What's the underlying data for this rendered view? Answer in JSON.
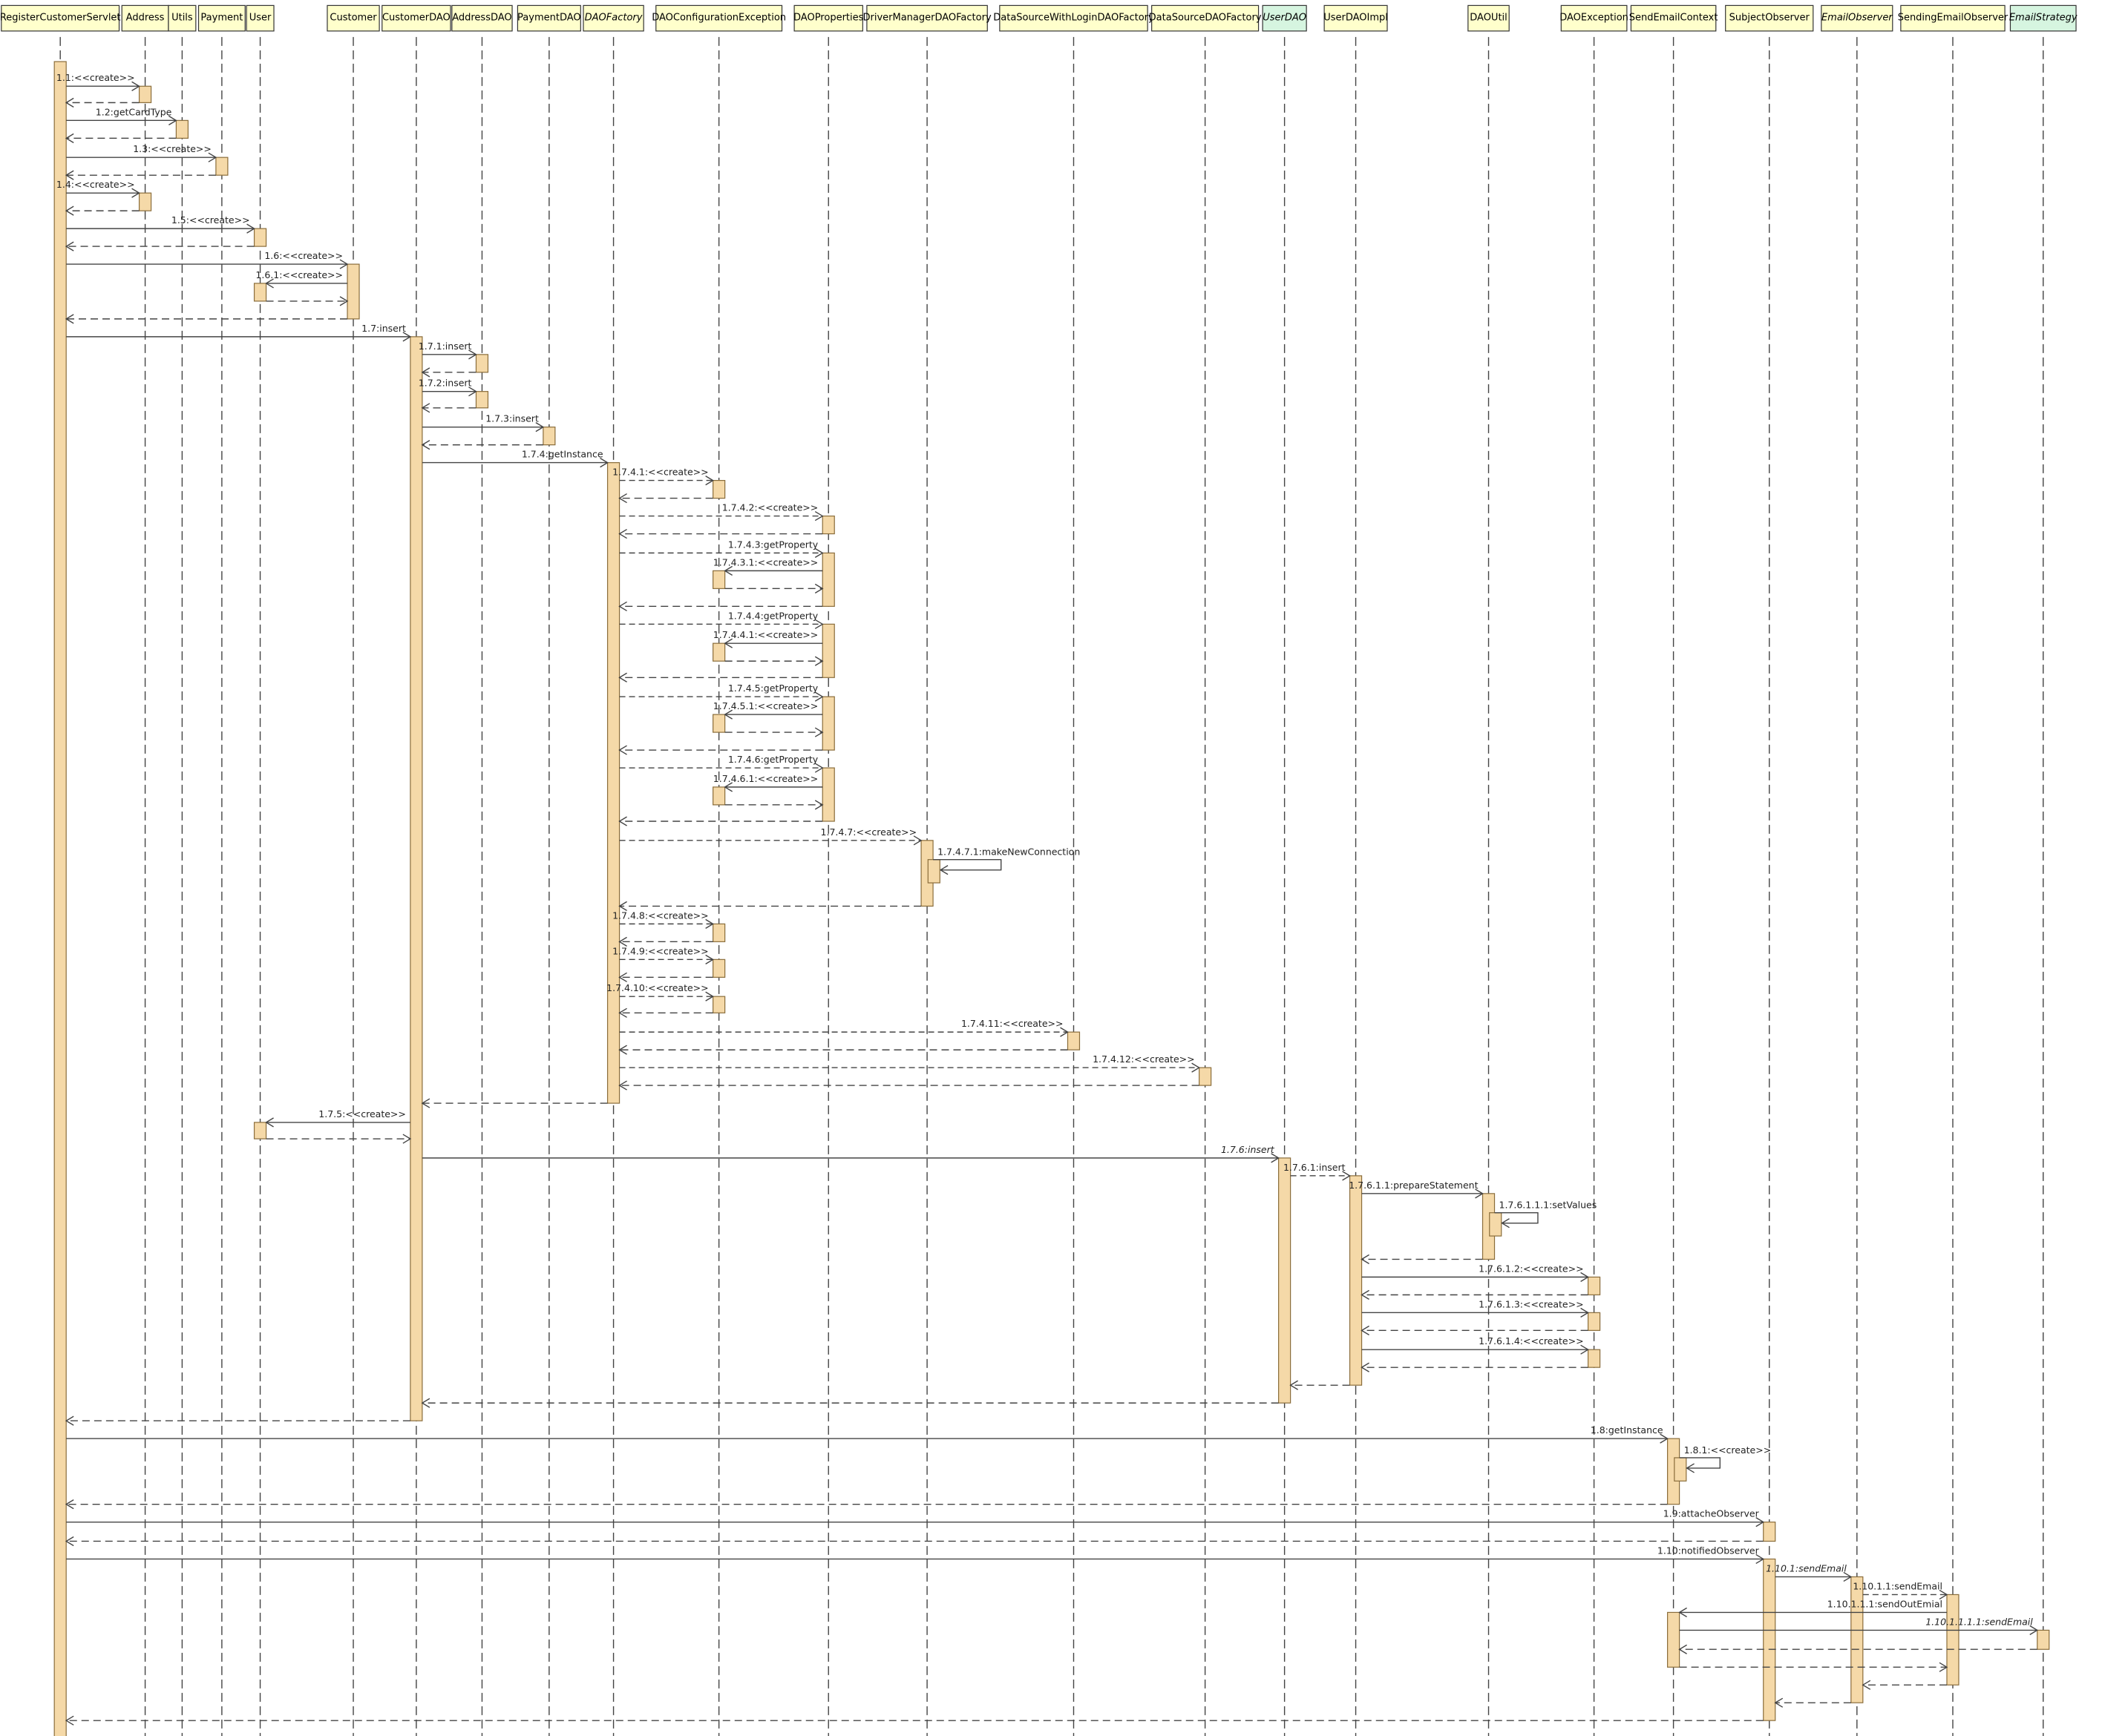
{
  "participants": [
    {
      "id": "RCS",
      "name": "RegisterCustomerServlet",
      "italic": false,
      "style": "class"
    },
    {
      "id": "ADDR",
      "name": "Address",
      "italic": false,
      "style": "class"
    },
    {
      "id": "UTILS",
      "name": "Utils",
      "italic": false,
      "style": "class"
    },
    {
      "id": "PAY",
      "name": "Payment",
      "italic": false,
      "style": "class"
    },
    {
      "id": "USER",
      "name": "User",
      "italic": false,
      "style": "class"
    },
    {
      "id": "CUST",
      "name": "Customer",
      "italic": false,
      "style": "class"
    },
    {
      "id": "CDAO",
      "name": "CustomerDAO",
      "italic": false,
      "style": "class"
    },
    {
      "id": "ADAO",
      "name": "AddressDAO",
      "italic": false,
      "style": "class"
    },
    {
      "id": "PDAO",
      "name": "PaymentDAO",
      "italic": false,
      "style": "class"
    },
    {
      "id": "DAOF",
      "name": "DAOFactory",
      "italic": true,
      "style": "class"
    },
    {
      "id": "DCE",
      "name": "DAOConfigurationException",
      "italic": false,
      "style": "class"
    },
    {
      "id": "DPROP",
      "name": "DAOProperties",
      "italic": false,
      "style": "class"
    },
    {
      "id": "DMDF",
      "name": "DriverManagerDAOFactory",
      "italic": false,
      "style": "class"
    },
    {
      "id": "DSWL",
      "name": "DataSourceWithLoginDAOFactory",
      "italic": false,
      "style": "class"
    },
    {
      "id": "DSDF",
      "name": "DataSourceDAOFactory",
      "italic": false,
      "style": "class"
    },
    {
      "id": "UDAO",
      "name": "UserDAO",
      "italic": true,
      "style": "interface"
    },
    {
      "id": "UDAOI",
      "name": "UserDAOImpl",
      "italic": false,
      "style": "class"
    },
    {
      "id": "DUTIL",
      "name": "DAOUtil",
      "italic": false,
      "style": "class"
    },
    {
      "id": "DEXC",
      "name": "DAOException",
      "italic": false,
      "style": "class"
    },
    {
      "id": "SEC",
      "name": "SendEmailContext",
      "italic": false,
      "style": "class"
    },
    {
      "id": "SOBS",
      "name": "SubjectObserver",
      "italic": false,
      "style": "class"
    },
    {
      "id": "EOBS",
      "name": "EmailObserver",
      "italic": true,
      "style": "class"
    },
    {
      "id": "SEOBS",
      "name": "SendingEmailObserver",
      "italic": false,
      "style": "class"
    },
    {
      "id": "ESTR",
      "name": "EmailStrategy",
      "italic": true,
      "style": "interface"
    }
  ],
  "messages": [
    {
      "label": "1.1:<<create>>",
      "from": "RCS",
      "to": "ADDR"
    },
    {
      "label": "1.2:getCardType",
      "from": "RCS",
      "to": "UTILS"
    },
    {
      "label": "1.3:<<create>>",
      "from": "RCS",
      "to": "PAY"
    },
    {
      "label": "1.4:<<create>>",
      "from": "RCS",
      "to": "ADDR"
    },
    {
      "label": "1.5:<<create>>",
      "from": "RCS",
      "to": "USER"
    },
    {
      "label": "1.6:<<create>>",
      "from": "RCS",
      "to": "CUST"
    },
    {
      "label": "1.6.1:<<create>>",
      "from": "CUST",
      "to": "USER"
    },
    {
      "label": "1.7:insert",
      "from": "RCS",
      "to": "CDAO"
    },
    {
      "label": "1.7.1:insert",
      "from": "CDAO",
      "to": "ADAO"
    },
    {
      "label": "1.7.2:insert",
      "from": "CDAO",
      "to": "ADAO"
    },
    {
      "label": "1.7.3:insert",
      "from": "CDAO",
      "to": "PDAO"
    },
    {
      "label": "1.7.4:getInstance",
      "from": "CDAO",
      "to": "DAOF"
    },
    {
      "label": "1.7.4.1:<<create>>",
      "from": "DAOF",
      "to": "DCE"
    },
    {
      "label": "1.7.4.2:<<create>>",
      "from": "DAOF",
      "to": "DPROP"
    },
    {
      "label": "1.7.4.3:getProperty",
      "from": "DAOF",
      "to": "DPROP"
    },
    {
      "label": "1.7.4.3.1:<<create>>",
      "from": "DPROP",
      "to": "DCE"
    },
    {
      "label": "1.7.4.4:getProperty",
      "from": "DAOF",
      "to": "DPROP"
    },
    {
      "label": "1.7.4.4.1:<<create>>",
      "from": "DPROP",
      "to": "DCE"
    },
    {
      "label": "1.7.4.5:getProperty",
      "from": "DAOF",
      "to": "DPROP"
    },
    {
      "label": "1.7.4.5.1:<<create>>",
      "from": "DPROP",
      "to": "DCE"
    },
    {
      "label": "1.7.4.6:getProperty",
      "from": "DAOF",
      "to": "DPROP"
    },
    {
      "label": "1.7.4.6.1:<<create>>",
      "from": "DPROP",
      "to": "DCE"
    },
    {
      "label": "1.7.4.7:<<create>>",
      "from": "DAOF",
      "to": "DMDF"
    },
    {
      "label": "1.7.4.7.1:makeNewConnection",
      "from": "DMDF",
      "to": "DMDF"
    },
    {
      "label": "1.7.4.8:<<create>>",
      "from": "DAOF",
      "to": "DCE"
    },
    {
      "label": "1.7.4.9:<<create>>",
      "from": "DAOF",
      "to": "DCE"
    },
    {
      "label": "1.7.4.10:<<create>>",
      "from": "DAOF",
      "to": "DCE"
    },
    {
      "label": "1.7.4.11:<<create>>",
      "from": "DAOF",
      "to": "DSWL"
    },
    {
      "label": "1.7.4.12:<<create>>",
      "from": "DAOF",
      "to": "DSDF"
    },
    {
      "label": "1.7.5:<<create>>",
      "from": "CDAO",
      "to": "USER"
    },
    {
      "label": "1.7.6:insert",
      "from": "CDAO",
      "to": "UDAO"
    },
    {
      "label": "1.7.6.1:insert",
      "from": "UDAO",
      "to": "UDAOI"
    },
    {
      "label": "1.7.6.1.1:prepareStatement",
      "from": "UDAOI",
      "to": "DUTIL"
    },
    {
      "label": "1.7.6.1.1.1:setValues",
      "from": "DUTIL",
      "to": "DUTIL"
    },
    {
      "label": "1.7.6.1.2:<<create>>",
      "from": "UDAOI",
      "to": "DEXC"
    },
    {
      "label": "1.7.6.1.3:<<create>>",
      "from": "UDAOI",
      "to": "DEXC"
    },
    {
      "label": "1.7.6.1.4:<<create>>",
      "from": "UDAOI",
      "to": "DEXC"
    },
    {
      "label": "1.8:getInstance",
      "from": "RCS",
      "to": "SEC"
    },
    {
      "label": "1.8.1:<<create>>",
      "from": "SEC",
      "to": "SEC"
    },
    {
      "label": "1.9:attacheObserver",
      "from": "RCS",
      "to": "SOBS"
    },
    {
      "label": "1.10:notifiedObserver",
      "from": "RCS",
      "to": "SOBS"
    },
    {
      "label": "1.10.1:sendEmail",
      "from": "SOBS",
      "to": "EOBS"
    },
    {
      "label": "1.10.1.1:sendEmail",
      "from": "EOBS",
      "to": "SEOBS"
    },
    {
      "label": "1.10.1.1.1:sendOutEmial",
      "from": "SEOBS",
      "to": "SEC"
    },
    {
      "label": "1.10.1.1.1.1:sendEmail",
      "from": "SEC",
      "to": "ESTR"
    }
  ],
  "colors": {
    "participant_fill": "#ffffcc",
    "interface_fill": "#d6f5e0",
    "activation_fill": "#f5d9a8",
    "activation_stroke": "#8a6d3b",
    "line": "#444444"
  }
}
